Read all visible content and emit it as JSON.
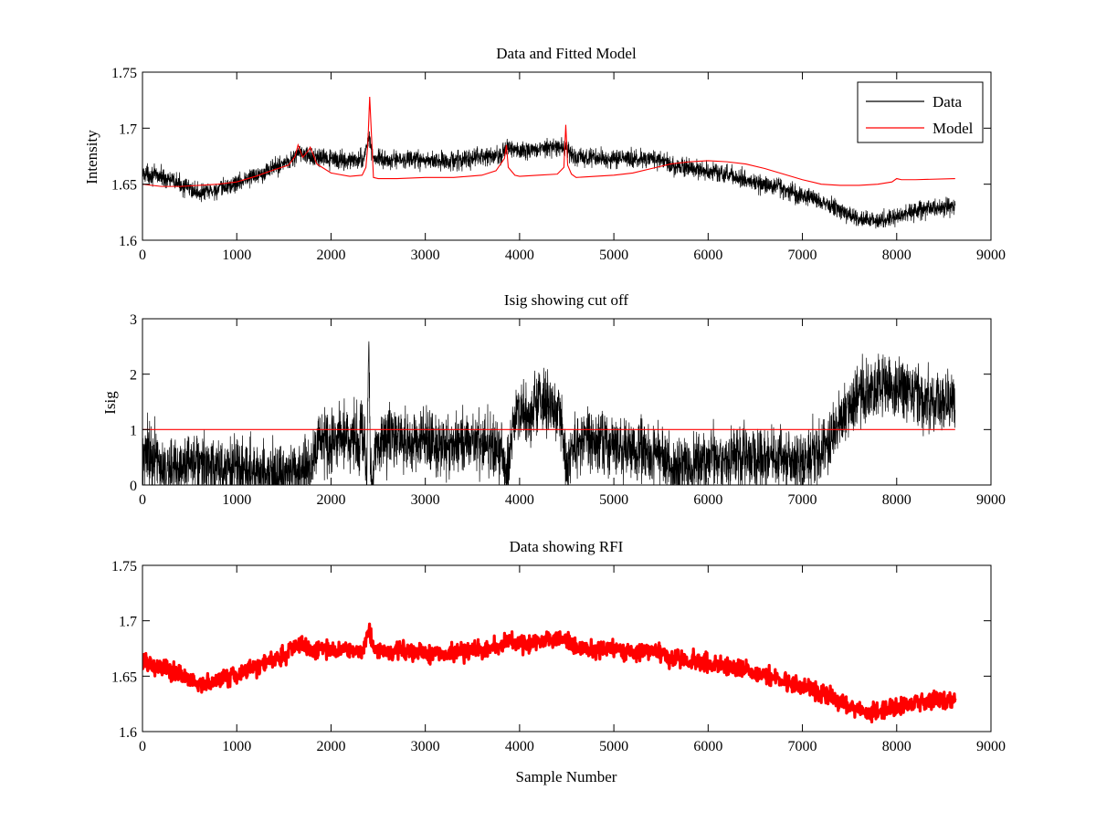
{
  "figure": {
    "background": "#ffffff"
  },
  "chart_data": [
    {
      "type": "line",
      "title": "Data and Fitted Model",
      "xlabel": "",
      "ylabel": "Intensity",
      "xlim": [
        0,
        9000
      ],
      "ylim": [
        1.6,
        1.75
      ],
      "xticks": [
        0,
        1000,
        2000,
        3000,
        4000,
        5000,
        6000,
        7000,
        8000,
        9000
      ],
      "yticks": [
        1.6,
        1.65,
        1.7,
        1.75
      ],
      "ytick_labels": [
        "1.6",
        "1.65",
        "1.7",
        "1.75"
      ],
      "legend": {
        "placement": "top-right",
        "entries": [
          "Data",
          "Model"
        ]
      },
      "grid": false,
      "series": [
        {
          "name": "Data",
          "color": "#000000",
          "style": "noisy-line",
          "x": [
            0,
            200,
            400,
            600,
            800,
            1000,
            1200,
            1400,
            1600,
            1650,
            1800,
            2000,
            2200,
            2350,
            2400,
            2450,
            2600,
            2800,
            3000,
            3200,
            3400,
            3600,
            3800,
            3870,
            4000,
            4200,
            4350,
            4500,
            4600,
            4800,
            5000,
            5200,
            5500,
            5600,
            5800,
            6000,
            6200,
            6400,
            6600,
            6800,
            7000,
            7200,
            7400,
            7600,
            7800,
            8000,
            8200,
            8400,
            8620
          ],
          "y": [
            1.66,
            1.657,
            1.65,
            1.642,
            1.645,
            1.651,
            1.658,
            1.665,
            1.673,
            1.678,
            1.674,
            1.672,
            1.671,
            1.672,
            1.694,
            1.673,
            1.671,
            1.672,
            1.671,
            1.671,
            1.672,
            1.674,
            1.676,
            1.683,
            1.679,
            1.68,
            1.683,
            1.682,
            1.674,
            1.673,
            1.673,
            1.672,
            1.672,
            1.666,
            1.664,
            1.662,
            1.659,
            1.654,
            1.65,
            1.646,
            1.64,
            1.635,
            1.626,
            1.62,
            1.617,
            1.621,
            1.627,
            1.628,
            1.629
          ],
          "noise": 0.004
        },
        {
          "name": "Model",
          "color": "#ff0000",
          "style": "line",
          "x": [
            0,
            200,
            400,
            600,
            800,
            1000,
            1200,
            1400,
            1550,
            1620,
            1650,
            1700,
            1750,
            1780,
            1850,
            2000,
            2200,
            2330,
            2370,
            2390,
            2410,
            2450,
            2500,
            2700,
            3000,
            3300,
            3600,
            3750,
            3840,
            3860,
            3880,
            3950,
            4000,
            4200,
            4400,
            4470,
            4490,
            4510,
            4550,
            4600,
            4800,
            5000,
            5200,
            5400,
            5600,
            5800,
            6000,
            6200,
            6400,
            6600,
            6800,
            7000,
            7200,
            7400,
            7600,
            7800,
            7950,
            8000,
            8050,
            8200,
            8620
          ],
          "y": [
            1.65,
            1.648,
            1.648,
            1.649,
            1.65,
            1.652,
            1.657,
            1.663,
            1.667,
            1.675,
            1.685,
            1.674,
            1.679,
            1.683,
            1.668,
            1.66,
            1.657,
            1.658,
            1.665,
            1.685,
            1.728,
            1.656,
            1.655,
            1.655,
            1.656,
            1.656,
            1.658,
            1.662,
            1.673,
            1.685,
            1.665,
            1.658,
            1.657,
            1.658,
            1.659,
            1.665,
            1.703,
            1.667,
            1.659,
            1.656,
            1.657,
            1.658,
            1.66,
            1.664,
            1.668,
            1.67,
            1.671,
            1.67,
            1.668,
            1.664,
            1.659,
            1.654,
            1.65,
            1.649,
            1.649,
            1.65,
            1.652,
            1.655,
            1.654,
            1.654,
            1.655
          ]
        }
      ]
    },
    {
      "type": "line",
      "title": "Isig showing cut off",
      "xlabel": "",
      "ylabel": "Isig",
      "xlim": [
        0,
        9000
      ],
      "ylim": [
        0,
        3
      ],
      "xticks": [
        0,
        1000,
        2000,
        3000,
        4000,
        5000,
        6000,
        7000,
        8000,
        9000
      ],
      "yticks": [
        0,
        1,
        2,
        3
      ],
      "ytick_labels": [
        "0",
        "1",
        "2",
        "3"
      ],
      "grid": false,
      "series": [
        {
          "name": "Isig",
          "color": "#000000",
          "style": "noisy-line",
          "x": [
            0,
            100,
            200,
            400,
            600,
            800,
            1000,
            1200,
            1400,
            1600,
            1750,
            1850,
            2000,
            2200,
            2350,
            2380,
            2400,
            2420,
            2500,
            2700,
            3000,
            3300,
            3600,
            3800,
            3870,
            3950,
            4100,
            4300,
            4430,
            4500,
            4550,
            4700,
            5000,
            5300,
            5500,
            5600,
            5800,
            6000,
            6300,
            6600,
            6900,
            7200,
            7400,
            7600,
            7800,
            8000,
            8200,
            8400,
            8620
          ],
          "y": [
            0.6,
            0.5,
            0.35,
            0.3,
            0.35,
            0.3,
            0.3,
            0.25,
            0.2,
            0.2,
            0.25,
            0.7,
            0.8,
            0.9,
            0.85,
            0.0,
            2.7,
            0.0,
            0.85,
            0.8,
            0.8,
            0.75,
            0.8,
            0.6,
            0.15,
            1.3,
            1.3,
            1.45,
            1.3,
            0.2,
            0.7,
            0.85,
            0.7,
            0.6,
            0.55,
            0.25,
            0.35,
            0.45,
            0.5,
            0.5,
            0.45,
            0.55,
            1.2,
            1.6,
            1.8,
            1.75,
            1.6,
            1.5,
            1.45
          ],
          "noise": 0.28
        },
        {
          "name": "Cut off",
          "color": "#ff0000",
          "style": "line",
          "x": [
            0,
            8620
          ],
          "y": [
            1,
            1
          ]
        }
      ]
    },
    {
      "type": "scatter",
      "title": "Data showing RFI",
      "xlabel": "Sample Number",
      "ylabel": "",
      "xlim": [
        0,
        9000
      ],
      "ylim": [
        1.6,
        1.75
      ],
      "xticks": [
        0,
        1000,
        2000,
        3000,
        4000,
        5000,
        6000,
        7000,
        8000,
        9000
      ],
      "yticks": [
        1.6,
        1.65,
        1.7,
        1.75
      ],
      "ytick_labels": [
        "1.6",
        "1.65",
        "1.7",
        "1.75"
      ],
      "grid": false,
      "series": [
        {
          "name": "RFI",
          "color": "#ff0000",
          "style": "noisy-points",
          "x": [
            0,
            200,
            400,
            600,
            800,
            1000,
            1200,
            1400,
            1600,
            1650,
            1800,
            2000,
            2200,
            2350,
            2400,
            2450,
            2600,
            2800,
            3000,
            3200,
            3400,
            3600,
            3800,
            3870,
            4000,
            4200,
            4350,
            4500,
            4600,
            4800,
            5000,
            5200,
            5500,
            5600,
            5800,
            6000,
            6200,
            6400,
            6600,
            6800,
            7000,
            7200,
            7400,
            7600,
            7800,
            8000,
            8200,
            8400,
            8620
          ],
          "y": [
            1.664,
            1.658,
            1.651,
            1.643,
            1.646,
            1.652,
            1.659,
            1.666,
            1.674,
            1.679,
            1.675,
            1.673,
            1.672,
            1.673,
            1.694,
            1.674,
            1.672,
            1.673,
            1.671,
            1.671,
            1.672,
            1.674,
            1.676,
            1.683,
            1.679,
            1.681,
            1.684,
            1.683,
            1.675,
            1.674,
            1.674,
            1.673,
            1.672,
            1.666,
            1.664,
            1.662,
            1.659,
            1.654,
            1.65,
            1.646,
            1.64,
            1.635,
            1.626,
            1.62,
            1.617,
            1.621,
            1.627,
            1.628,
            1.629
          ],
          "noise": 0.004
        }
      ]
    }
  ]
}
